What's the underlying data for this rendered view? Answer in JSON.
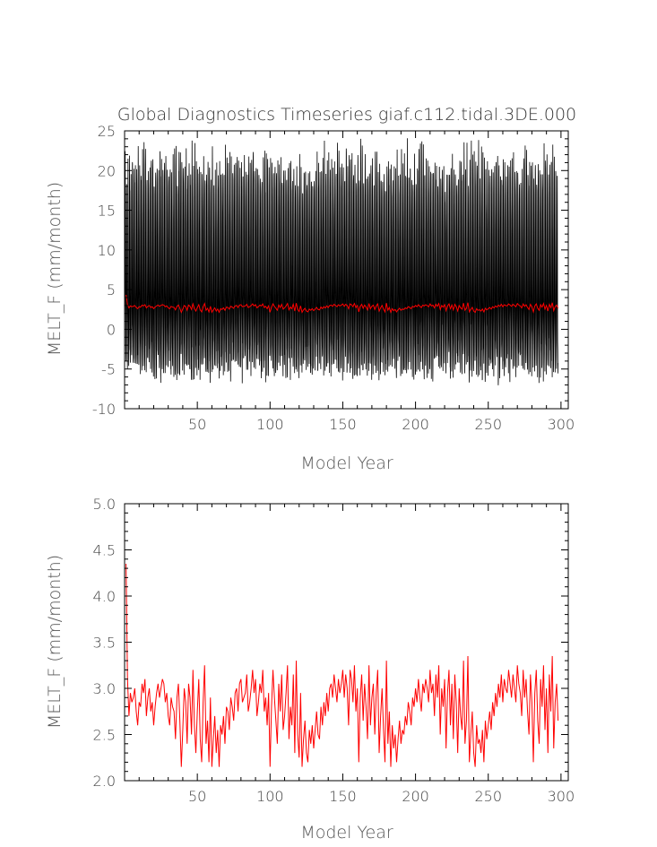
{
  "chart_data": [
    {
      "type": "line",
      "title": "Global Diagnostics Timeseries giaf.c112.tidal.3DE.000",
      "xlabel": "Model Year",
      "ylabel": "MELT_F (mm/month)",
      "xlim": [
        0,
        305
      ],
      "ylim": [
        -10,
        25
      ],
      "xticks": [
        50,
        100,
        150,
        200,
        250,
        300
      ],
      "yticks": [
        -10,
        -5,
        0,
        5,
        10,
        15,
        20,
        25
      ],
      "grid": false,
      "series": [
        {
          "color": "#000000",
          "kind": "monthly",
          "seasonal_amplitude_profile": [
            {
              "x": 1,
              "max": 22.5,
              "min": -4.5
            },
            {
              "x": 20,
              "max": 22.8,
              "min": -5.0
            },
            {
              "x": 40,
              "max": 23.5,
              "min": -5.5
            },
            {
              "x": 60,
              "max": 22.0,
              "min": -5.2
            },
            {
              "x": 80,
              "max": 23.0,
              "min": -5.0
            },
            {
              "x": 100,
              "max": 22.5,
              "min": -5.5
            },
            {
              "x": 120,
              "max": 21.5,
              "min": -5.0
            },
            {
              "x": 140,
              "max": 23.0,
              "min": -5.2
            },
            {
              "x": 160,
              "max": 23.5,
              "min": -5.8
            },
            {
              "x": 180,
              "max": 22.5,
              "min": -5.0
            },
            {
              "x": 200,
              "max": 23.0,
              "min": -5.5
            },
            {
              "x": 220,
              "max": 22.0,
              "min": -5.0
            },
            {
              "x": 240,
              "max": 23.0,
              "min": -5.2
            },
            {
              "x": 260,
              "max": 22.5,
              "min": -5.5
            },
            {
              "x": 280,
              "max": 23.0,
              "min": -5.0
            },
            {
              "x": 304,
              "max": 22.0,
              "min": -4.8
            }
          ]
        },
        {
          "color": "#ff0000",
          "kind": "annual mean",
          "values_ref": "annual_mean"
        }
      ]
    },
    {
      "type": "line",
      "title": "",
      "xlabel": "Model Year",
      "ylabel": "MELT_F (mm/month)",
      "xlim": [
        0,
        305
      ],
      "ylim": [
        2.0,
        5.0
      ],
      "xticks": [
        50,
        100,
        150,
        200,
        250,
        300
      ],
      "yticks": [
        "2.0",
        "2.5",
        "3.0",
        "3.5",
        "4.0",
        "4.5",
        "5.0"
      ],
      "grid": false,
      "series": [
        {
          "color": "#ff0000",
          "kind": "annual mean",
          "values_ref": "annual_mean"
        }
      ]
    }
  ],
  "annual_mean": {
    "x_start": 1,
    "x_step": 1,
    "values": [
      4.35,
      3.1,
      2.7,
      2.95,
      2.85,
      2.9,
      3.0,
      2.75,
      2.6,
      2.85,
      2.8,
      3.05,
      2.95,
      3.1,
      2.7,
      2.9,
      3.0,
      2.75,
      2.85,
      2.6,
      2.8,
      2.95,
      3.05,
      2.9,
      3.0,
      3.1,
      3.05,
      2.85,
      2.95,
      2.7,
      2.6,
      2.9,
      2.8,
      2.75,
      2.45,
      2.9,
      3.05,
      2.65,
      2.15,
      2.55,
      3.0,
      2.85,
      2.4,
      3.05,
      2.9,
      2.5,
      3.2,
      2.6,
      2.3,
      2.75,
      3.1,
      2.45,
      2.2,
      2.85,
      3.25,
      2.4,
      2.65,
      2.2,
      2.9,
      2.15,
      2.45,
      2.7,
      2.3,
      2.55,
      2.15,
      2.6,
      2.5,
      2.7,
      2.4,
      2.8,
      2.75,
      2.55,
      2.9,
      2.8,
      2.65,
      2.95,
      3.0,
      2.75,
      3.05,
      3.1,
      2.85,
      2.9,
      2.95,
      3.15,
      2.75,
      2.85,
      3.0,
      3.2,
      2.95,
      3.1,
      2.7,
      2.85,
      3.05,
      2.95,
      3.2,
      2.75,
      2.9,
      2.6,
      2.95,
      2.15,
      2.8,
      3.2,
      2.9,
      2.65,
      2.4,
      3.05,
      2.75,
      3.15,
      2.55,
      2.7,
      2.95,
      3.25,
      2.45,
      2.8,
      2.6,
      3.15,
      2.3,
      3.3,
      2.5,
      2.25,
      2.95,
      2.15,
      2.45,
      2.65,
      2.3,
      2.2,
      2.55,
      2.4,
      2.6,
      2.35,
      2.55,
      2.75,
      2.5,
      2.45,
      2.8,
      2.6,
      2.85,
      2.7,
      2.95,
      2.75,
      3.0,
      3.05,
      2.9,
      3.15,
      3.0,
      2.85,
      3.1,
      2.95,
      3.05,
      3.2,
      2.9,
      3.15,
      3.0,
      2.6,
      3.2,
      3.1,
      2.85,
      3.25,
      2.75,
      3.0,
      2.2,
      2.9,
      3.15,
      2.65,
      3.05,
      2.8,
      2.45,
      3.25,
      2.6,
      2.9,
      3.05,
      2.5,
      2.95,
      3.2,
      2.3,
      2.7,
      3.0,
      2.55,
      2.2,
      3.3,
      2.4,
      2.75,
      2.15,
      2.6,
      2.35,
      2.5,
      2.2,
      2.45,
      2.65,
      2.4,
      2.55,
      2.5,
      2.7,
      2.6,
      2.85,
      2.75,
      2.6,
      2.9,
      2.8,
      3.0,
      2.85,
      3.1,
      2.9,
      2.75,
      3.05,
      2.95,
      3.1,
      3.0,
      2.85,
      3.2,
      2.95,
      3.05,
      2.7,
      3.15,
      2.9,
      3.25,
      2.5,
      3.0,
      2.8,
      3.1,
      2.35,
      2.95,
      3.2,
      2.6,
      3.05,
      2.45,
      3.15,
      2.85,
      2.3,
      3.0,
      2.7,
      2.55,
      3.3,
      2.4,
      2.65,
      3.35,
      2.2,
      2.5,
      2.75,
      2.3,
      2.15,
      2.6,
      2.4,
      2.45,
      2.3,
      2.55,
      2.2,
      2.65,
      2.45,
      2.6,
      2.75,
      2.55,
      2.85,
      2.7,
      2.95,
      2.8,
      3.05,
      2.9,
      3.15,
      2.85,
      3.1,
      3.0,
      2.95,
      3.2,
      3.05,
      2.9,
      3.15,
      3.0,
      2.85,
      3.25,
      3.05,
      2.95,
      2.7,
      3.2,
      2.9,
      3.1,
      2.75,
      2.5,
      3.15,
      2.85,
      2.2,
      2.95,
      3.2,
      2.65,
      2.4,
      3.1,
      2.8,
      3.25,
      2.55,
      3.0,
      2.3,
      3.15,
      2.75,
      3.35,
      2.35,
      2.85,
      3.05,
      2.65
    ]
  }
}
